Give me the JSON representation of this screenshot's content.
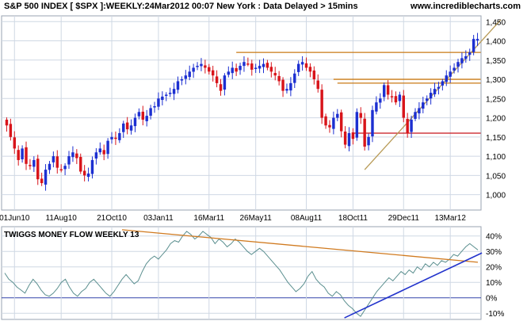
{
  "header": {
    "title": "S&P 500 INDEX [ $SPX ]:WEEKLY:24Mar2012 00:07 New York : Data Delayed > 15mins",
    "site": "www.incrediblecharts.com"
  },
  "colors": {
    "up": "#1c2fd1",
    "down": "#d8141a",
    "grid": "#cfd8e4",
    "resistance": "#c97a15",
    "support": "#c8141a",
    "trend": "#b89a55",
    "mf_line": "#5b8f8f",
    "mf_trend_down": "#d07a1f",
    "mf_trend_up": "#2233cc",
    "zero": "#3344aa"
  },
  "chart_data": [
    {
      "type": "candlestick",
      "title": "S&P 500 INDEX [ $SPX ]:WEEKLY",
      "x_ticks": [
        "01Jun10",
        "11Aug10",
        "21Oct10",
        "03Jan11",
        "16Mar11",
        "26May11",
        "08Aug11",
        "18Oct11",
        "29Dec11",
        "13Mar12"
      ],
      "y_ticks": [
        "1,000",
        "1,050",
        "1,100",
        "1,150",
        "1,200",
        "1,250",
        "1,300",
        "1,350",
        "1,400",
        "1,450"
      ],
      "y_tick_values": [
        1000,
        1050,
        1100,
        1150,
        1200,
        1250,
        1300,
        1350,
        1400,
        1450
      ],
      "ylim": [
        960,
        1465
      ],
      "closes": [
        1180,
        1150,
        1120,
        1090,
        1120,
        1080,
        1075,
        1090,
        1040,
        1030,
        1065,
        1080,
        1100,
        1070,
        1065,
        1075,
        1100,
        1110,
        1095,
        1060,
        1050,
        1055,
        1090,
        1110,
        1120,
        1105,
        1140,
        1150,
        1145,
        1160,
        1185,
        1170,
        1180,
        1200,
        1215,
        1195,
        1205,
        1225,
        1230,
        1250,
        1255,
        1260,
        1265,
        1275,
        1295,
        1300,
        1310,
        1320,
        1330,
        1335,
        1340,
        1330,
        1320,
        1310,
        1290,
        1270,
        1310,
        1320,
        1330,
        1320,
        1335,
        1345,
        1340,
        1325,
        1330,
        1335,
        1340,
        1330,
        1320,
        1310,
        1295,
        1270,
        1275,
        1290,
        1315,
        1340,
        1345,
        1330,
        1320,
        1300,
        1275,
        1200,
        1180,
        1175,
        1200,
        1210,
        1165,
        1130,
        1160,
        1145,
        1215,
        1200,
        1125,
        1150,
        1220,
        1240,
        1250,
        1285,
        1260,
        1255,
        1240,
        1260,
        1200,
        1160,
        1195,
        1215,
        1225,
        1240,
        1250,
        1265,
        1275,
        1280,
        1295,
        1310,
        1320,
        1330,
        1345,
        1355,
        1360,
        1370,
        1405,
        1405
      ],
      "resistance_lines": [
        1370,
        1300,
        1290
      ],
      "support_line": 1160,
      "trendline": [
        [
          1065,
          92
        ],
        [
          1455,
          127
        ]
      ]
    },
    {
      "type": "line",
      "title": "TWIGGS MONEY FLOW WEEKLY 13",
      "y_ticks": [
        "40%",
        "30%",
        "20%",
        "10%",
        "0%",
        "-10%"
      ],
      "y_tick_values": [
        40,
        30,
        20,
        10,
        0,
        -10
      ],
      "ylim": [
        -14,
        46
      ],
      "values": [
        16,
        12,
        10,
        7,
        5,
        3,
        8,
        12,
        9,
        5,
        2,
        1,
        3,
        6,
        10,
        12,
        7,
        3,
        1,
        4,
        6,
        10,
        12,
        9,
        6,
        3,
        1,
        4,
        8,
        12,
        15,
        12,
        9,
        11,
        17,
        22,
        25,
        27,
        25,
        28,
        31,
        35,
        37,
        36,
        40,
        43,
        41,
        38,
        40,
        43,
        41,
        39,
        35,
        38,
        36,
        33,
        35,
        38,
        36,
        33,
        30,
        28,
        30,
        32,
        30,
        27,
        24,
        21,
        18,
        14,
        10,
        7,
        4,
        6,
        9,
        14,
        17,
        12,
        9,
        7,
        3,
        1,
        4,
        2,
        -2,
        -5,
        -7,
        -10,
        -12,
        -8,
        -4,
        0,
        4,
        7,
        10,
        13,
        11,
        14,
        17,
        15,
        18,
        16,
        20,
        18,
        22,
        20,
        23,
        21,
        24,
        23,
        25,
        28,
        27,
        30,
        33,
        35,
        33,
        31
      ],
      "trendline_down": [
        [
          29,
          44
        ],
        [
          117,
          23
        ]
      ],
      "trendline_up": [
        [
          84,
          -13
        ],
        [
          118,
          29
        ]
      ]
    }
  ]
}
